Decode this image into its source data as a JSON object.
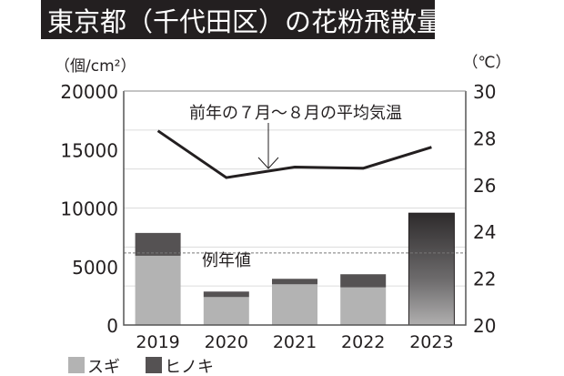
{
  "title": "東京都（千代田区）の花粉飛散量予測",
  "chart_data": {
    "type": "bar",
    "title": "東京都（千代田区）の花粉飛散量予測",
    "categories": [
      "2019",
      "2020",
      "2021",
      "2022",
      "2023"
    ],
    "left_axis": {
      "unit_label": "（個/cm²）",
      "ylim": [
        0,
        20000
      ],
      "ticks": [
        "0",
        "5000",
        "10000",
        "15000",
        "20000"
      ]
    },
    "right_axis": {
      "unit_label": "（℃）",
      "ylim": [
        20,
        30
      ],
      "ticks": [
        "20",
        "22",
        "24",
        "26",
        "28",
        "30"
      ]
    },
    "series": [
      {
        "name": "スギ",
        "type": "stacked-bar",
        "color": "#b3b3b3",
        "values": [
          5920,
          2390,
          3480,
          3220,
          null
        ]
      },
      {
        "name": "ヒノキ",
        "type": "stacked-bar",
        "color": "#555253",
        "values": [
          1950,
          470,
          470,
          1120,
          null
        ]
      },
      {
        "type": "bar-total-forecast",
        "values": [
          null,
          null,
          null,
          null,
          9560
        ]
      },
      {
        "type": "line",
        "axis": "right",
        "color": "#231f20",
        "values": [
          28.3,
          26.3,
          26.75,
          26.7,
          27.6
        ]
      }
    ],
    "reference_line": {
      "label": "例年値",
      "value": 6160,
      "style": "dashed"
    },
    "annotation": "前年の７月〜８月の平均気温",
    "legend": {
      "placement": "bottom-left",
      "entries": [
        "スギ",
        "ヒノキ"
      ]
    },
    "grid": true
  }
}
